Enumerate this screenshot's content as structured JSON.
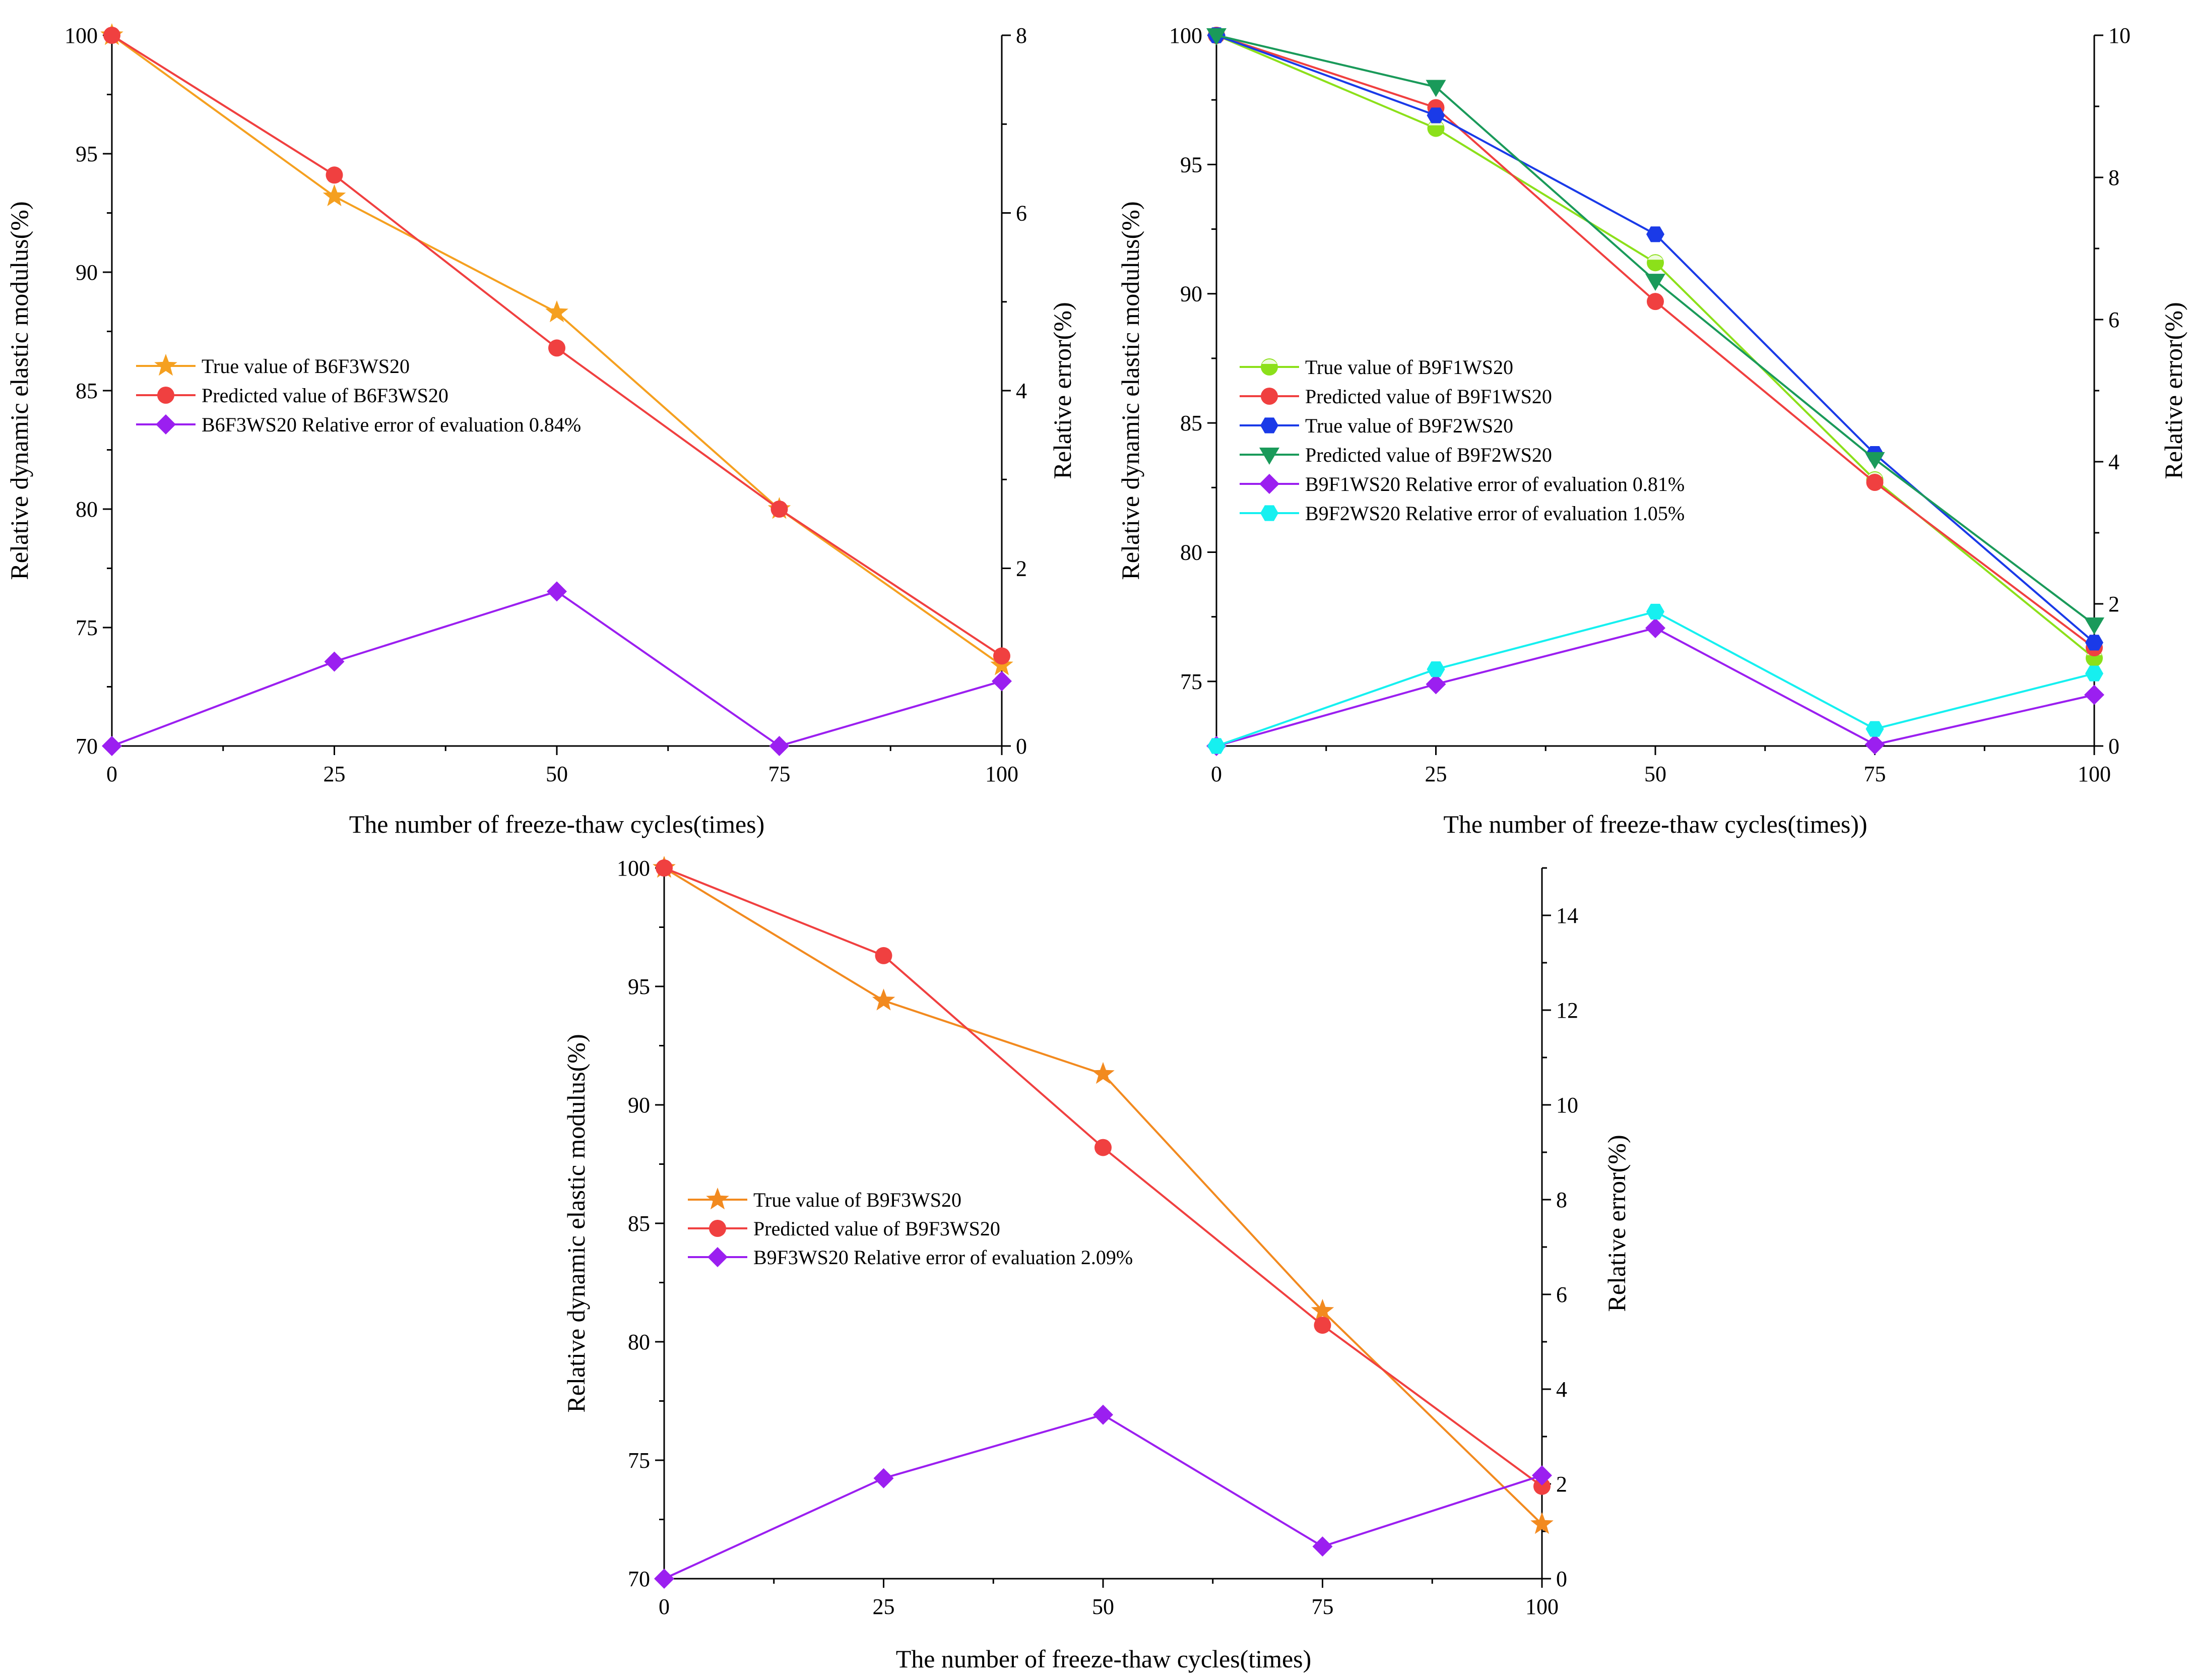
{
  "chart_data": [
    {
      "id": "a",
      "type": "line",
      "xlabel": "The number of freeze-thaw cycles(times)",
      "ylabel": "Relative dynamic elastic modulus(%)",
      "y2label": "Relative error(%)",
      "x": [
        0,
        25,
        50,
        75,
        100
      ],
      "xticks": [
        "0",
        "25",
        "50",
        "75",
        "100"
      ],
      "xlim": [
        0,
        100
      ],
      "ylim": [
        70,
        100
      ],
      "yticks": [
        "70",
        "75",
        "80",
        "85",
        "90",
        "95",
        "100"
      ],
      "y2lim": [
        0,
        8
      ],
      "y2ticks": [
        "0",
        "2",
        "4",
        "6",
        "8"
      ],
      "series": [
        {
          "name": "True value of B6F3WS20",
          "axis": "left",
          "color": "#f5a020",
          "marker": "star",
          "values": [
            100,
            93.2,
            88.3,
            80.0,
            73.4
          ]
        },
        {
          "name": "Predicted value of B6F3WS20",
          "axis": "left",
          "color": "#f04040",
          "marker": "circle",
          "values": [
            100,
            94.1,
            86.8,
            80.0,
            73.8
          ]
        },
        {
          "name": "B6F3WS20 Relative error of evaluation 0.84%",
          "axis": "right",
          "color": "#9b1ff0",
          "marker": "diamond",
          "values": [
            0,
            0.95,
            1.74,
            0,
            0.73
          ]
        }
      ]
    },
    {
      "id": "b",
      "type": "line",
      "xlabel": "The number of freeze-thaw cycles(times))",
      "ylabel": "Relative dynamic elastic modulus(%)",
      "y2label": "Relative error(%)",
      "x": [
        0,
        25,
        50,
        75,
        100
      ],
      "xticks": [
        "0",
        "25",
        "50",
        "75",
        "100"
      ],
      "xlim": [
        0,
        100
      ],
      "ylim": [
        72.5,
        100
      ],
      "yticks": [
        "75",
        "80",
        "85",
        "90",
        "95",
        "100"
      ],
      "y2lim": [
        0,
        10
      ],
      "y2ticks": [
        "0",
        "2",
        "4",
        "6",
        "8",
        "10"
      ],
      "series": [
        {
          "name": "True value of B9F1WS20",
          "axis": "left",
          "color": "#8ce01a",
          "marker": "half-circle",
          "values": [
            100,
            96.4,
            91.2,
            82.8,
            75.9
          ]
        },
        {
          "name": "Predicted value of B9F1WS20",
          "axis": "left",
          "color": "#f04040",
          "marker": "circle",
          "values": [
            100,
            97.2,
            89.7,
            82.7,
            76.3
          ]
        },
        {
          "name": "True value of B9F2WS20",
          "axis": "left",
          "color": "#1a3ae8",
          "marker": "hexagon",
          "values": [
            100,
            96.9,
            92.3,
            83.8,
            76.5
          ]
        },
        {
          "name": "Predicted value of B9F2WS20",
          "axis": "left",
          "color": "#1a9a5a",
          "marker": "triangle-down",
          "values": [
            100,
            98.0,
            90.5,
            83.6,
            77.2
          ]
        },
        {
          "name": "B9F1WS20 Relative error of evaluation 0.81%",
          "axis": "right",
          "color": "#9b1ff0",
          "marker": "diamond",
          "values": [
            0,
            0.87,
            1.66,
            0.02,
            0.72
          ]
        },
        {
          "name": "B9F2WS20 Relative error of evaluation 1.05%",
          "axis": "right",
          "color": "#16f0f0",
          "marker": "hexagon",
          "values": [
            0,
            1.08,
            1.89,
            0.24,
            1.02
          ]
        }
      ]
    },
    {
      "id": "c",
      "type": "line",
      "xlabel": "The number of freeze-thaw cycles(times)",
      "ylabel": "Relative dynamic elastic modulus(%)",
      "y2label": "Relative error(%)",
      "x": [
        0,
        25,
        50,
        75,
        100
      ],
      "xticks": [
        "0",
        "25",
        "50",
        "75",
        "100"
      ],
      "xlim": [
        0,
        100
      ],
      "ylim": [
        70,
        100
      ],
      "yticks": [
        "70",
        "75",
        "80",
        "85",
        "90",
        "95",
        "100"
      ],
      "y2lim": [
        0,
        15
      ],
      "y2ticks": [
        "0",
        "2",
        "4",
        "6",
        "8",
        "10",
        "12",
        "14"
      ],
      "series": [
        {
          "name": "True value of B9F3WS20",
          "axis": "left",
          "color": "#f28a1f",
          "marker": "star",
          "values": [
            100,
            94.4,
            91.3,
            81.3,
            72.3
          ]
        },
        {
          "name": "Predicted value of B9F3WS20",
          "axis": "left",
          "color": "#f04040",
          "marker": "circle",
          "values": [
            100,
            96.3,
            88.2,
            80.7,
            73.9
          ]
        },
        {
          "name": "B9F3WS20 Relative error of evaluation 2.09%",
          "axis": "right",
          "color": "#9b1ff0",
          "marker": "diamond",
          "values": [
            0,
            2.12,
            3.46,
            0.68,
            2.18
          ]
        }
      ]
    }
  ]
}
